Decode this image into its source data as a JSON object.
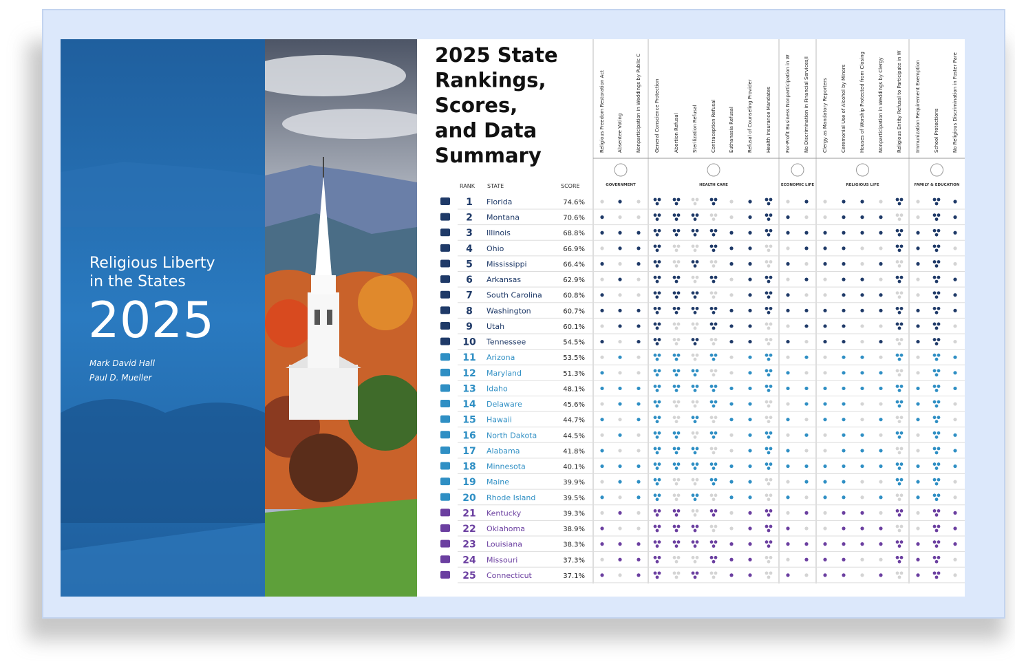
{
  "cover": {
    "title_lines": [
      "Religious Liberty",
      "in the States"
    ],
    "year": "2025",
    "authors": [
      "Mark David Hall",
      "Paul D. Mueller"
    ]
  },
  "summary": {
    "title_lines": [
      "2025 State",
      "Rankings,",
      "Scores,",
      "and Data",
      "Summary"
    ],
    "headers": [
      "RANK",
      "STATE",
      "SCORE"
    ],
    "groups": [
      {
        "label": "GOVERNMENT",
        "columns": [
          "Religious Freedom Restoration Act",
          "Absentee Voting",
          "Nonparticipation in Weddings by Public C"
        ]
      },
      {
        "label": "HEALTH CARE",
        "columns": [
          "General Conscience Protection",
          "Abortion Refusal",
          "Sterilization Refusal",
          "Contraception Refusal",
          "Euthanasia Refusal",
          "Refusal of Counseling Provider",
          "Health Insurance Mandates"
        ]
      },
      {
        "label": "ECONOMIC LIFE",
        "columns": [
          "For-Profit Business Nonparticipation in W",
          "No Discrimination in Financial Services/I"
        ]
      },
      {
        "label": "RELIGIOUS LIFE",
        "columns": [
          "Clergy as Mandatory Reporters",
          "Ceremonial Use of Alcohol by Minors",
          "Houses of Worship Protected from Closing",
          "Nonparticipation in Weddings by Clergy",
          "Religious Entity Refusal to Participate in W"
        ]
      },
      {
        "label": "FAMILY & EDUCATION",
        "columns": [
          "Immunization Requirement Exemption",
          "School Protections",
          "No Religious Discrimination in Foster Pare"
        ]
      }
    ],
    "rows": [
      [
        1,
        "Florida",
        "74.6%"
      ],
      [
        2,
        "Montana",
        "70.6%"
      ],
      [
        3,
        "Illinois",
        "68.8%"
      ],
      [
        4,
        "Ohio",
        "66.9%"
      ],
      [
        5,
        "Mississippi",
        "66.4%"
      ],
      [
        6,
        "Arkansas",
        "62.9%"
      ],
      [
        7,
        "South Carolina",
        "60.8%"
      ],
      [
        8,
        "Washington",
        "60.7%"
      ],
      [
        9,
        "Utah",
        "60.1%"
      ],
      [
        10,
        "Tennessee",
        "54.5%"
      ],
      [
        11,
        "Arizona",
        "53.5%"
      ],
      [
        12,
        "Maryland",
        "51.3%"
      ],
      [
        13,
        "Idaho",
        "48.1%"
      ],
      [
        14,
        "Delaware",
        "45.6%"
      ],
      [
        15,
        "Hawaii",
        "44.7%"
      ],
      [
        16,
        "North Dakota",
        "44.5%"
      ],
      [
        17,
        "Alabama",
        "41.8%"
      ],
      [
        18,
        "Minnesota",
        "40.1%"
      ],
      [
        19,
        "Maine",
        "39.9%"
      ],
      [
        20,
        "Rhode Island",
        "39.5%"
      ],
      [
        21,
        "Kentucky",
        "39.3%"
      ],
      [
        22,
        "Oklahoma",
        "38.9%"
      ],
      [
        23,
        "Louisiana",
        "38.3%"
      ],
      [
        24,
        "Missouri",
        "37.3%"
      ],
      [
        25,
        "Connecticut",
        "37.1%"
      ]
    ]
  }
}
